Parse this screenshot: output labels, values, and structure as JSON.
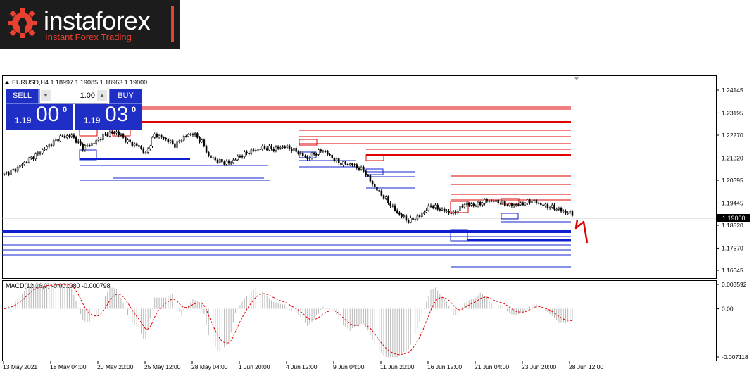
{
  "logo": {
    "name": "instaforex",
    "tagline": "Instant Forex Trading"
  },
  "chart": {
    "symbol_info": "EURUSD,H4  1.18997 1.19085 1.18963 1.19000",
    "current_price": "1.19000",
    "price_ticks": [
      "1.24145",
      "1.23195",
      "1.22270",
      "1.21320",
      "1.20395",
      "1.19445",
      "1.18520",
      "1.17570",
      "1.16645"
    ],
    "time_ticks": [
      "13 May 2021",
      "18 May 04:00",
      "20 May 20:00",
      "25 May 12:00",
      "28 May 04:00",
      "1 Jun 20:00",
      "4 Jun 12:00",
      "9 Jun 04:00",
      "11 Jun 20:00",
      "16 Jun 12:00",
      "21 Jun 04:00",
      "23 Jun 20:00",
      "28 Jun 12:00"
    ],
    "macd_label": "MACD(12,26,9) -0.001080 -0.000798",
    "macd_ticks": [
      "0.003592",
      "0.00",
      "-0.007118"
    ],
    "colors": {
      "support": "#1020d0",
      "resistance": "#e00000",
      "candle": "#000000",
      "signal": "#e00000",
      "histogram": "#b8b8b8"
    }
  },
  "chart_data": {
    "type": "candlestick",
    "symbol": "EURUSD",
    "timeframe": "H4",
    "ylim": [
      1.16645,
      1.24145
    ],
    "x_range": [
      "13 May 2021",
      "28 Jun 12:00"
    ],
    "close_path": [
      [
        0,
        1.2065
      ],
      [
        5,
        1.2085
      ],
      [
        10,
        1.212
      ],
      [
        15,
        1.215
      ],
      [
        20,
        1.2185
      ],
      [
        25,
        1.222
      ],
      [
        30,
        1.2225
      ],
      [
        35,
        1.2175
      ],
      [
        40,
        1.2195
      ],
      [
        45,
        1.223
      ],
      [
        50,
        1.224
      ],
      [
        55,
        1.22
      ],
      [
        60,
        1.218
      ],
      [
        63,
        1.215
      ],
      [
        67,
        1.223
      ],
      [
        72,
        1.221
      ],
      [
        76,
        1.2185
      ],
      [
        80,
        1.222
      ],
      [
        84,
        1.2235
      ],
      [
        88,
        1.22
      ],
      [
        91,
        1.214
      ],
      [
        95,
        1.212
      ],
      [
        100,
        1.211
      ],
      [
        105,
        1.214
      ],
      [
        110,
        1.216
      ],
      [
        115,
        1.2175
      ],
      [
        120,
        1.217
      ],
      [
        125,
        1.218
      ],
      [
        130,
        1.216
      ],
      [
        135,
        1.213
      ],
      [
        138,
        1.215
      ],
      [
        142,
        1.2165
      ],
      [
        147,
        1.2125
      ],
      [
        150,
        1.211
      ],
      [
        155,
        1.2105
      ],
      [
        160,
        1.208
      ],
      [
        165,
        1.201
      ],
      [
        170,
        1.196
      ],
      [
        175,
        1.1905
      ],
      [
        180,
        1.187
      ],
      [
        185,
        1.189
      ],
      [
        190,
        1.1935
      ],
      [
        195,
        1.1915
      ],
      [
        200,
        1.19
      ],
      [
        205,
        1.194
      ],
      [
        210,
        1.1935
      ],
      [
        215,
        1.1955
      ],
      [
        220,
        1.195
      ],
      [
        225,
        1.1935
      ],
      [
        230,
        1.194
      ],
      [
        235,
        1.1955
      ],
      [
        240,
        1.1935
      ],
      [
        245,
        1.1925
      ],
      [
        250,
        1.1905
      ],
      [
        253,
        1.19
      ]
    ],
    "support_lines": [
      1.185,
      1.1815,
      1.184,
      1.18
    ],
    "resistance_lines": [
      1.227,
      1.215,
      1.2025,
      1.1975
    ],
    "macd": {
      "main_range": [
        -0.007118,
        0.003592
      ],
      "last_main": -0.00108,
      "last_signal": -0.000798
    }
  },
  "trade_panel": {
    "sell_label": "SELL",
    "buy_label": "BUY",
    "lot": "1.00",
    "sell_small": "1.19",
    "sell_big": "00",
    "sell_sup": "0",
    "buy_small": "1.19",
    "buy_big": "03",
    "buy_sup": "0"
  }
}
